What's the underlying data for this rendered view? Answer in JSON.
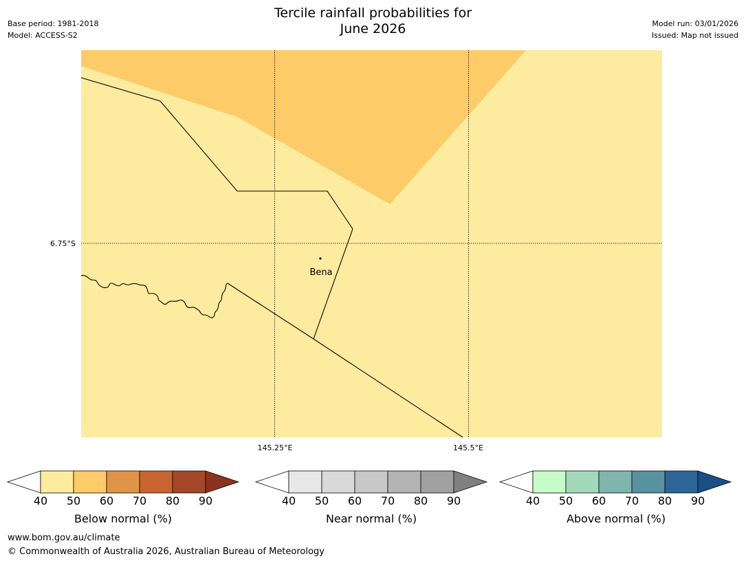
{
  "header": {
    "title_line1": "Tercile rainfall probabilities for",
    "title_line2": "June 2026",
    "base_period": "Base period: 1981-2018",
    "model": "Model: ACCESS-S2",
    "model_run": "Model run: 03/01/2026",
    "issued": "Issued: Map not issued"
  },
  "map": {
    "lat_label": "6.75°S",
    "lon_labels": [
      "145.25°E",
      "145.5°E"
    ],
    "place_label": "Bena",
    "colors": {
      "base_fill": "#fdeba0",
      "high_fill": "#fecb69",
      "boundary": "#000000",
      "grid": "#000000"
    }
  },
  "legends": [
    {
      "name": "below-normal",
      "label": "Below normal (%)",
      "ticks": [
        "40",
        "50",
        "60",
        "70",
        "80",
        "90"
      ],
      "colors": [
        "#ffffff",
        "#fdeba0",
        "#fecb69",
        "#e09448",
        "#c96431",
        "#a5472a",
        "#8c3320"
      ]
    },
    {
      "name": "near-normal",
      "label": "Near normal (%)",
      "ticks": [
        "40",
        "50",
        "60",
        "70",
        "80",
        "90"
      ],
      "colors": [
        "#ffffff",
        "#e8e8e8",
        "#d9d9d9",
        "#c8c8c8",
        "#b4b4b4",
        "#a0a0a0",
        "#808080"
      ]
    },
    {
      "name": "above-normal",
      "label": "Above normal (%)",
      "ticks": [
        "40",
        "50",
        "60",
        "70",
        "80",
        "90"
      ],
      "colors": [
        "#ffffff",
        "#c8fcc8",
        "#a3d9bb",
        "#7fb5ad",
        "#5891a0",
        "#2e6597",
        "#1a4f86"
      ]
    }
  ],
  "footer": {
    "url": "www.bom.gov.au/climate",
    "copyright": "© Commonwealth of Australia 2026, Australian Bureau of Meteorology"
  }
}
